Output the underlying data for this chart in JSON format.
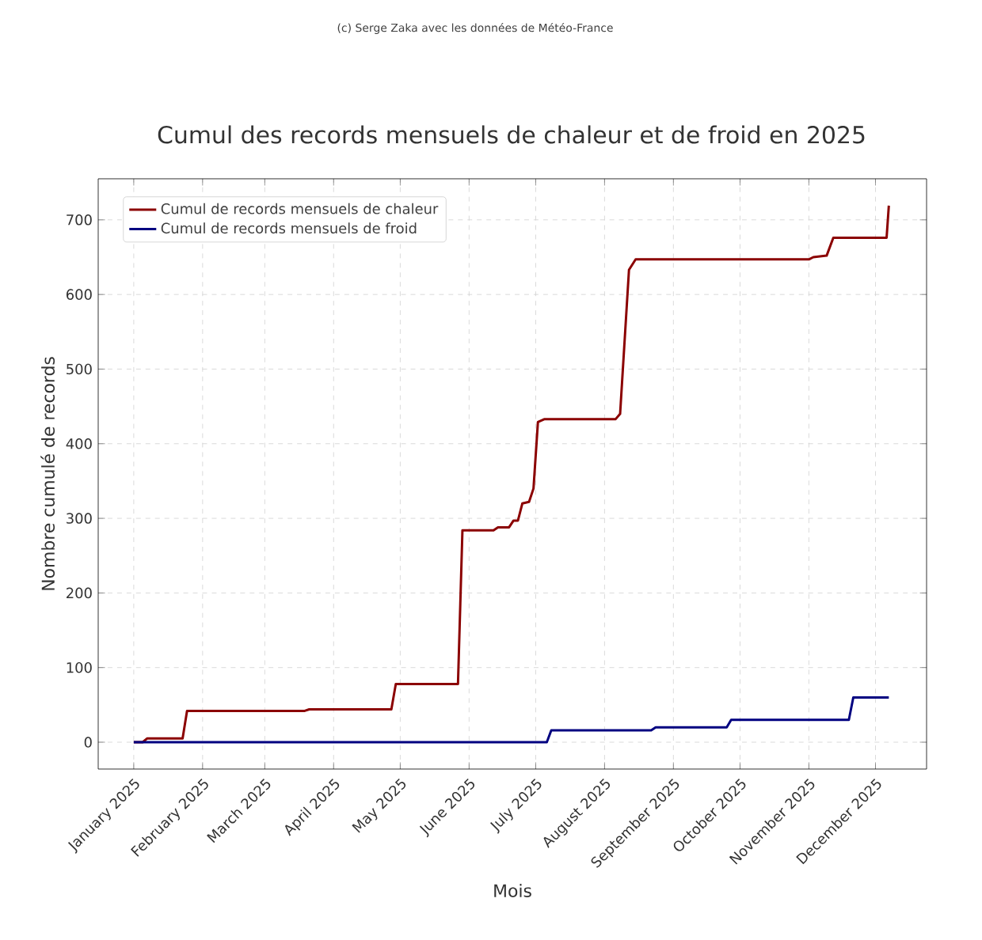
{
  "chart_data": {
    "type": "line",
    "title": "Cumul des records mensuels de chaleur et de froid en 2025",
    "xlabel": "Mois",
    "ylabel": "Nombre cumulé de records",
    "annotations": [
      "(c) Serge Zaka avec les données de Météo-France"
    ],
    "series": [
      {
        "name": "Cumul de records mensuels de chaleur",
        "color": "#8b0000",
        "x": [
          "2025-01-01",
          "2025-01-05",
          "2025-01-07",
          "2025-01-23",
          "2025-01-25",
          "2025-03-19",
          "2025-03-21",
          "2025-04-27",
          "2025-04-29",
          "2025-05-27",
          "2025-05-29",
          "2025-06-12",
          "2025-06-14",
          "2025-06-19",
          "2025-06-21",
          "2025-06-23",
          "2025-06-25",
          "2025-06-28",
          "2025-06-30",
          "2025-07-02",
          "2025-07-05",
          "2025-08-06",
          "2025-08-08",
          "2025-08-12",
          "2025-08-15",
          "2025-11-01",
          "2025-11-03",
          "2025-11-09",
          "2025-11-12",
          "2025-12-06",
          "2025-12-07"
        ],
        "values": [
          0,
          0,
          5,
          5,
          42,
          42,
          44,
          44,
          78,
          78,
          284,
          284,
          288,
          288,
          297,
          297,
          320,
          322,
          340,
          429,
          433,
          433,
          440,
          633,
          647,
          647,
          650,
          652,
          676,
          676,
          719
        ]
      },
      {
        "name": "Cumul de records mensuels de froid",
        "color": "#000080",
        "x": [
          "2025-01-01",
          "2025-07-06",
          "2025-07-08",
          "2025-08-22",
          "2025-08-24",
          "2025-09-25",
          "2025-09-27",
          "2025-11-19",
          "2025-11-21",
          "2025-12-07"
        ],
        "values": [
          0,
          0,
          16,
          16,
          20,
          20,
          30,
          30,
          60,
          60
        ]
      }
    ],
    "xlim": [
      "2024-12-16",
      "2025-12-24"
    ],
    "xticks": [
      {
        "value": "2025-01-01",
        "label": "January 2025"
      },
      {
        "value": "2025-02-01",
        "label": "February 2025"
      },
      {
        "value": "2025-03-01",
        "label": "March 2025"
      },
      {
        "value": "2025-04-01",
        "label": "April 2025"
      },
      {
        "value": "2025-05-01",
        "label": "May 2025"
      },
      {
        "value": "2025-06-01",
        "label": "June 2025"
      },
      {
        "value": "2025-07-01",
        "label": "July 2025"
      },
      {
        "value": "2025-08-01",
        "label": "August 2025"
      },
      {
        "value": "2025-09-01",
        "label": "September 2025"
      },
      {
        "value": "2025-10-01",
        "label": "October 2025"
      },
      {
        "value": "2025-11-01",
        "label": "November 2025"
      },
      {
        "value": "2025-12-01",
        "label": "December 2025"
      }
    ],
    "ylim": [
      -36,
      755
    ],
    "yticks": [
      0,
      100,
      200,
      300,
      400,
      500,
      600,
      700
    ],
    "grid": true,
    "legend": "top left",
    "line_style": "solid",
    "marker": "none"
  }
}
